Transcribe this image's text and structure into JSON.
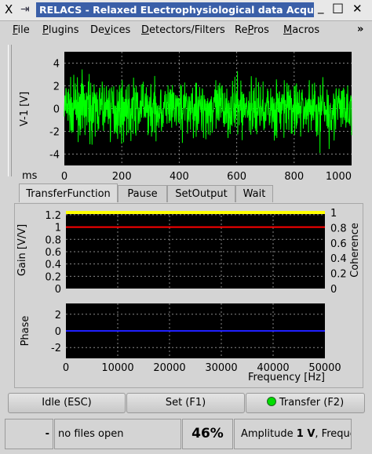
{
  "window": {
    "title": "RELACS - Relaxed ELectrophysiological data Acqui",
    "close_glyph": "X",
    "pin_glyph": "⇥",
    "minimize_glyph": "_",
    "maximize_glyph": "□",
    "closewin_glyph": "✕"
  },
  "menubar": {
    "items": [
      "File",
      "Plugins",
      "Devices",
      "Detectors/Filters",
      "RePros",
      "Macros"
    ],
    "underlines": [
      "F",
      "P",
      "v",
      "D",
      "P",
      "M"
    ],
    "overflow": "»"
  },
  "trace_plot": {
    "ylabel": "V-1 [V]",
    "xlabel": "ms",
    "yticks": [
      "4",
      "2",
      "0",
      "-2",
      "-4"
    ],
    "xticks": [
      "0",
      "200",
      "400",
      "600",
      "800",
      "1000"
    ]
  },
  "tabs": [
    "TransferFunction",
    "Pause",
    "SetOutput",
    "Wait"
  ],
  "gain_plot": {
    "ylabel_left": "Gain [V/V]",
    "ylabel_right": "Coherence",
    "yticks_left": [
      "1.2",
      "1",
      "0.8",
      "0.6",
      "0.4",
      "0.2",
      "0"
    ],
    "yticks_right": [
      "1",
      "0.8",
      "0.6",
      "0.4",
      "0.2",
      "0"
    ]
  },
  "phase_plot": {
    "ylabel": "Phase",
    "yticks": [
      "2",
      "0",
      "-2"
    ],
    "xticks": [
      "0",
      "10000",
      "20000",
      "30000",
      "40000",
      "50000"
    ],
    "xlabel": "Frequency [Hz]"
  },
  "buttons": {
    "idle": "Idle (ESC)",
    "set": "Set (F1)",
    "transfer": "Transfer (F2)"
  },
  "statusbar": {
    "dash": "-",
    "files": "no files open",
    "percent": "46%",
    "amp_prefix": "Amplitude ",
    "amp_value": "1 V",
    "amp_suffix": ", Freque"
  },
  "colors": {
    "trace": "#00ff00",
    "gain": "#ff0000",
    "coherence": "#ffff00",
    "phase": "#2020ff",
    "plot_bg": "#000000",
    "status_led": "#00dd00"
  }
}
